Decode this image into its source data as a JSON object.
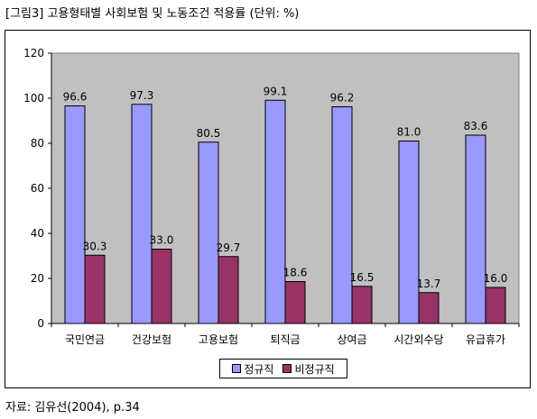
{
  "figure": {
    "title": "[그림3] 고용형태별 사회보험 및 노동조건 적용률 (단위: %)",
    "source": "자료: 김유선(2004), p.34"
  },
  "chart_data": {
    "type": "bar",
    "categories": [
      "국민연금",
      "건강보험",
      "고용보험",
      "퇴직금",
      "상여금",
      "시간외수당",
      "유급휴가"
    ],
    "series": [
      {
        "name": "정규직",
        "values": [
          96.6,
          97.3,
          80.5,
          99.1,
          96.2,
          81.0,
          83.6
        ],
        "color": "#9999FF"
      },
      {
        "name": "비정규직",
        "values": [
          30.3,
          33.0,
          29.7,
          18.6,
          16.5,
          13.7,
          16.0
        ],
        "color": "#993366"
      }
    ],
    "ylim": [
      0,
      120
    ],
    "yticks": [
      "0",
      "20",
      "40",
      "60",
      "80",
      "100",
      "120"
    ],
    "plot_background": "#C0C0C0",
    "legend_position": "bottom",
    "grid": false
  }
}
